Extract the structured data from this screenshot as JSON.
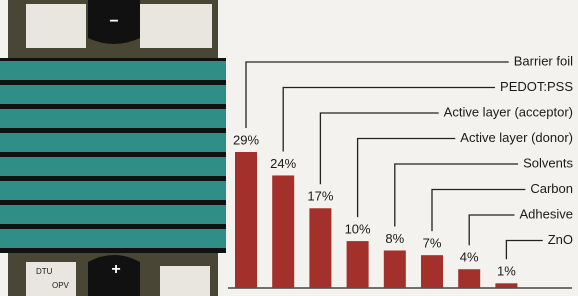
{
  "chart_data": {
    "type": "bar",
    "categories": [
      "Barrier foil",
      "PEDOT:PSS",
      "Active layer (acceptor)",
      "Active layer (donor)",
      "Solvents",
      "Carbon",
      "Adhesive",
      "ZnO"
    ],
    "values": [
      29,
      24,
      17,
      10,
      8,
      7,
      4,
      1
    ],
    "value_labels": [
      "29%",
      "24%",
      "17%",
      "10%",
      "8%",
      "7%",
      "4%",
      "1%"
    ],
    "color": "#a3302b"
  },
  "module": {
    "minus": "−",
    "plus": "+",
    "logo": "DTU",
    "product": "OPV"
  }
}
